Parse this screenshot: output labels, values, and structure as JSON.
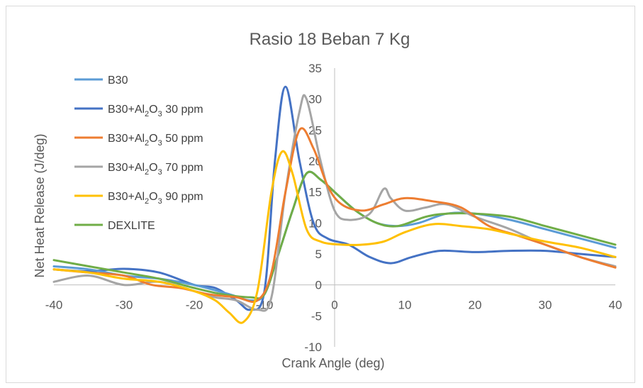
{
  "chart_data": {
    "type": "line",
    "title": "Rasio 18 Beban 7 Kg",
    "xlabel": "Crank Angle (deg)",
    "ylabel": "Net Heat Release (J/deg)",
    "xlim": [
      -40,
      40
    ],
    "ylim": [
      -10,
      35
    ],
    "x_ticks": [
      "-40",
      "-30",
      "-20",
      "-10",
      "0",
      "10",
      "20",
      "30",
      "40"
    ],
    "y_ticks": [
      "-10",
      "-5",
      "0",
      "5",
      "10",
      "15",
      "20",
      "25",
      "30",
      "35"
    ],
    "grid": false,
    "legend_position": "top-left",
    "series": [
      {
        "name": "B30",
        "color": "#5b9bd5",
        "points": [
          [
            -40,
            3.0
          ],
          [
            -35,
            2.5
          ],
          [
            -30,
            1.5
          ],
          [
            -25,
            1.0
          ],
          [
            -20,
            0.0
          ],
          [
            -15,
            -1.5
          ],
          [
            -12,
            -2.5
          ],
          [
            -10,
            -1.5
          ],
          [
            -8,
            5.0
          ],
          [
            -6,
            12.0
          ],
          [
            -4,
            18.0
          ],
          [
            -2,
            17.0
          ],
          [
            0,
            15.0
          ],
          [
            3,
            12.0
          ],
          [
            6,
            10.0
          ],
          [
            9,
            9.5
          ],
          [
            12,
            10.0
          ],
          [
            16,
            11.5
          ],
          [
            20,
            11.5
          ],
          [
            25,
            10.5
          ],
          [
            30,
            9.0
          ],
          [
            35,
            7.5
          ],
          [
            40,
            6.0
          ]
        ]
      },
      {
        "name": "B30+Al2O3 30 ppm",
        "label_main": "B30+Al",
        "label_sub": "2",
        "label_mid": "O",
        "label_sub2": "3",
        "label_tail": " 30 ppm",
        "color": "#4472c4",
        "points": [
          [
            -40,
            2.5
          ],
          [
            -35,
            2.2
          ],
          [
            -30,
            2.6
          ],
          [
            -25,
            2.0
          ],
          [
            -20,
            0.0
          ],
          [
            -17,
            -0.5
          ],
          [
            -14,
            -2.5
          ],
          [
            -12,
            -4.0
          ],
          [
            -10,
            -1.0
          ],
          [
            -8.5,
            20.0
          ],
          [
            -7,
            32.0
          ],
          [
            -5,
            20.0
          ],
          [
            -3,
            10.0
          ],
          [
            -1,
            7.5
          ],
          [
            2,
            6.5
          ],
          [
            5,
            4.5
          ],
          [
            8,
            3.5
          ],
          [
            11,
            4.5
          ],
          [
            15,
            5.5
          ],
          [
            20,
            5.3
          ],
          [
            25,
            5.5
          ],
          [
            30,
            5.5
          ],
          [
            35,
            5.0
          ],
          [
            40,
            4.5
          ]
        ]
      },
      {
        "name": "B30+Al2O3 50 ppm",
        "label_main": "B30+Al",
        "label_sub": "2",
        "label_mid": "O",
        "label_sub2": "3",
        "label_tail": " 50 ppm",
        "color": "#ed7d31",
        "points": [
          [
            -40,
            2.5
          ],
          [
            -35,
            2.0
          ],
          [
            -30,
            1.5
          ],
          [
            -26,
            0.0
          ],
          [
            -22,
            -0.5
          ],
          [
            -18,
            -1.5
          ],
          [
            -14,
            -2.0
          ],
          [
            -11,
            -2.5
          ],
          [
            -9,
            2.0
          ],
          [
            -7,
            15.0
          ],
          [
            -5,
            25.0
          ],
          [
            -3,
            22.0
          ],
          [
            -1,
            16.0
          ],
          [
            1,
            13.0
          ],
          [
            4,
            12.0
          ],
          [
            7,
            13.0
          ],
          [
            10,
            14.0
          ],
          [
            14,
            13.5
          ],
          [
            18,
            12.5
          ],
          [
            22,
            9.5
          ],
          [
            26,
            8.0
          ],
          [
            30,
            6.5
          ],
          [
            35,
            4.5
          ],
          [
            40,
            2.8
          ]
        ]
      },
      {
        "name": "B30+Al2O3 70 ppm",
        "label_main": "B30+Al",
        "label_sub": "2",
        "label_mid": "O",
        "label_sub2": "3",
        "label_tail": " 70 ppm",
        "color": "#a5a5a5",
        "points": [
          [
            -40,
            0.5
          ],
          [
            -35,
            1.5
          ],
          [
            -30,
            0.0
          ],
          [
            -25,
            0.5
          ],
          [
            -20,
            -1.0
          ],
          [
            -17,
            -2.0
          ],
          [
            -14,
            -2.5
          ],
          [
            -11,
            -4.0
          ],
          [
            -9,
            -2.0
          ],
          [
            -7,
            15.0
          ],
          [
            -5,
            28.0
          ],
          [
            -4,
            30.0
          ],
          [
            -2,
            20.0
          ],
          [
            0,
            12.0
          ],
          [
            2,
            10.5
          ],
          [
            5,
            11.5
          ],
          [
            7,
            15.5
          ],
          [
            8,
            14.0
          ],
          [
            10,
            12.0
          ],
          [
            13,
            12.5
          ],
          [
            16,
            13.0
          ],
          [
            20,
            11.0
          ],
          [
            25,
            9.0
          ],
          [
            30,
            6.5
          ],
          [
            35,
            4.5
          ],
          [
            40,
            3.0
          ]
        ]
      },
      {
        "name": "B30+Al2O3 90 ppm",
        "label_main": "B30+Al",
        "label_sub": "2",
        "label_mid": "O",
        "label_sub2": "3",
        "label_tail": " 90 ppm",
        "color": "#ffc000",
        "points": [
          [
            -40,
            2.5
          ],
          [
            -35,
            2.0
          ],
          [
            -30,
            1.0
          ],
          [
            -25,
            0.5
          ],
          [
            -20,
            -1.0
          ],
          [
            -17,
            -2.5
          ],
          [
            -15,
            -4.5
          ],
          [
            -13,
            -6.0
          ],
          [
            -11,
            -1.0
          ],
          [
            -9,
            15.0
          ],
          [
            -7.5,
            21.5
          ],
          [
            -6,
            18.0
          ],
          [
            -4,
            9.0
          ],
          [
            -2,
            7.0
          ],
          [
            1,
            6.5
          ],
          [
            4,
            6.5
          ],
          [
            7,
            7.0
          ],
          [
            10,
            8.5
          ],
          [
            14,
            9.8
          ],
          [
            18,
            9.5
          ],
          [
            22,
            9.0
          ],
          [
            26,
            8.0
          ],
          [
            30,
            7.0
          ],
          [
            35,
            6.0
          ],
          [
            40,
            4.5
          ]
        ]
      },
      {
        "name": "DEXLITE",
        "color": "#70ad47",
        "points": [
          [
            -40,
            4.0
          ],
          [
            -35,
            3.0
          ],
          [
            -30,
            2.0
          ],
          [
            -25,
            1.0
          ],
          [
            -20,
            -0.5
          ],
          [
            -16,
            -1.5
          ],
          [
            -12,
            -2.0
          ],
          [
            -10,
            -1.5
          ],
          [
            -8,
            5.0
          ],
          [
            -6,
            12.0
          ],
          [
            -4,
            18.0
          ],
          [
            -2,
            17.0
          ],
          [
            0,
            15.0
          ],
          [
            3,
            12.0
          ],
          [
            6,
            10.0
          ],
          [
            9,
            9.5
          ],
          [
            13,
            11.0
          ],
          [
            16,
            11.5
          ],
          [
            20,
            11.5
          ],
          [
            25,
            11.0
          ],
          [
            30,
            9.5
          ],
          [
            35,
            8.0
          ],
          [
            40,
            6.5
          ]
        ]
      }
    ]
  }
}
